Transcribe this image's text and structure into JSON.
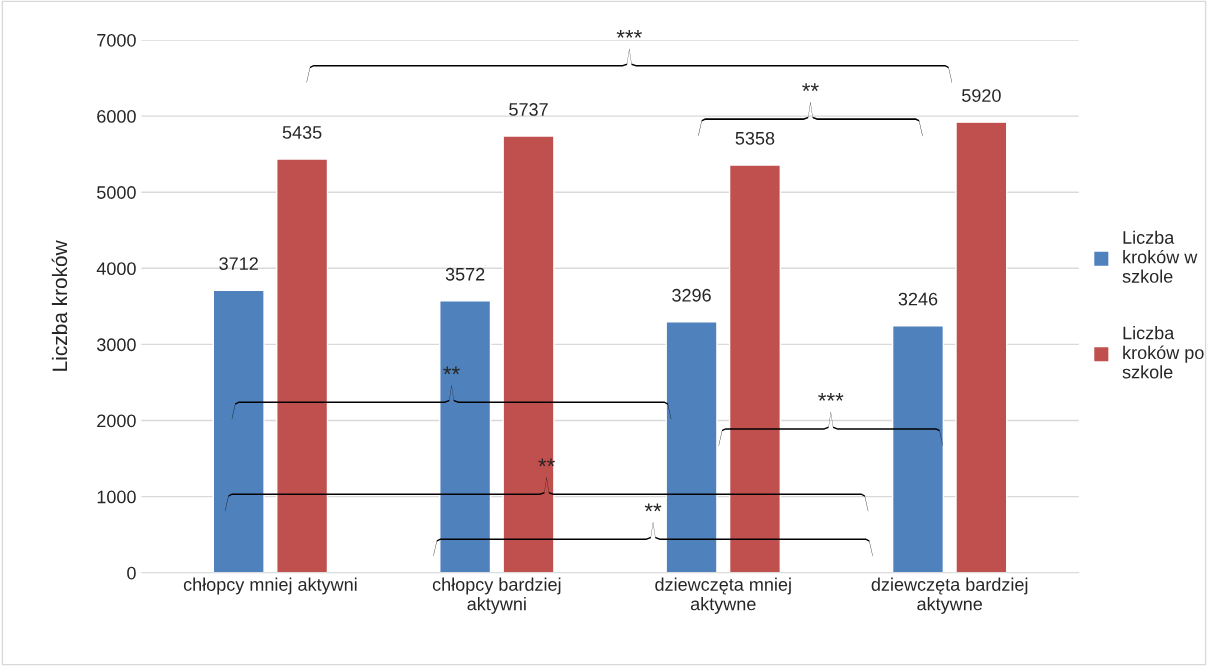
{
  "chart_data": {
    "type": "bar",
    "ylabel": "Liczba kroków",
    "categories": [
      "chłopcy mniej aktywni",
      "chłopcy bardziej aktywni",
      "dziewczęta mniej aktywne",
      "dziewczęta bardziej aktywne"
    ],
    "series": [
      {
        "name": "Liczba kroków w szkole",
        "color": "#4f81bd",
        "values": [
          3712,
          3572,
          3296,
          3246
        ]
      },
      {
        "name": "Liczba kroków po szkole",
        "color": "#c0504d",
        "values": [
          5435,
          5737,
          5358,
          5920
        ]
      }
    ],
    "ylim": [
      0,
      7000
    ],
    "yticks": [
      0,
      1000,
      2000,
      3000,
      4000,
      5000,
      6000,
      7000
    ],
    "grid": "y",
    "legend": "right",
    "data_labels": true,
    "annotations": [
      "***",
      "**",
      "**",
      "***",
      "**",
      "**"
    ]
  }
}
